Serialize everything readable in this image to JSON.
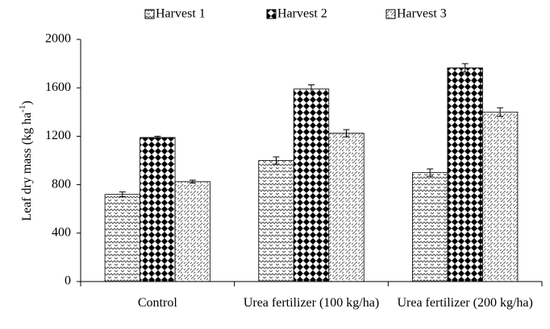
{
  "chart_data": {
    "type": "bar",
    "ylabel": {
      "text": "Leaf dry mass (kg ha",
      "sup": "-1",
      "end": ")"
    },
    "categories": [
      "Control",
      "Urea fertilizer (100 kg/ha)",
      "Urea fertilizer (200 kg/ha)"
    ],
    "series": [
      {
        "name": "Harvest 1",
        "color": "#555555",
        "pattern": "zigzag",
        "values": [
          720,
          1000,
          900
        ],
        "errors": [
          20,
          30,
          30
        ]
      },
      {
        "name": "Harvest 2",
        "color": "#000000",
        "pattern": "checker",
        "values": [
          1190,
          1590,
          1765
        ],
        "errors": [
          10,
          35,
          35
        ]
      },
      {
        "name": "Harvest 3",
        "color": "#666666",
        "pattern": "dashes",
        "values": [
          825,
          1225,
          1400
        ],
        "errors": [
          12,
          30,
          35
        ]
      }
    ],
    "ylim": [
      0,
      2000
    ],
    "yticks": [
      0,
      400,
      800,
      1200,
      1600,
      2000
    ],
    "grid": false,
    "legend": "top"
  }
}
